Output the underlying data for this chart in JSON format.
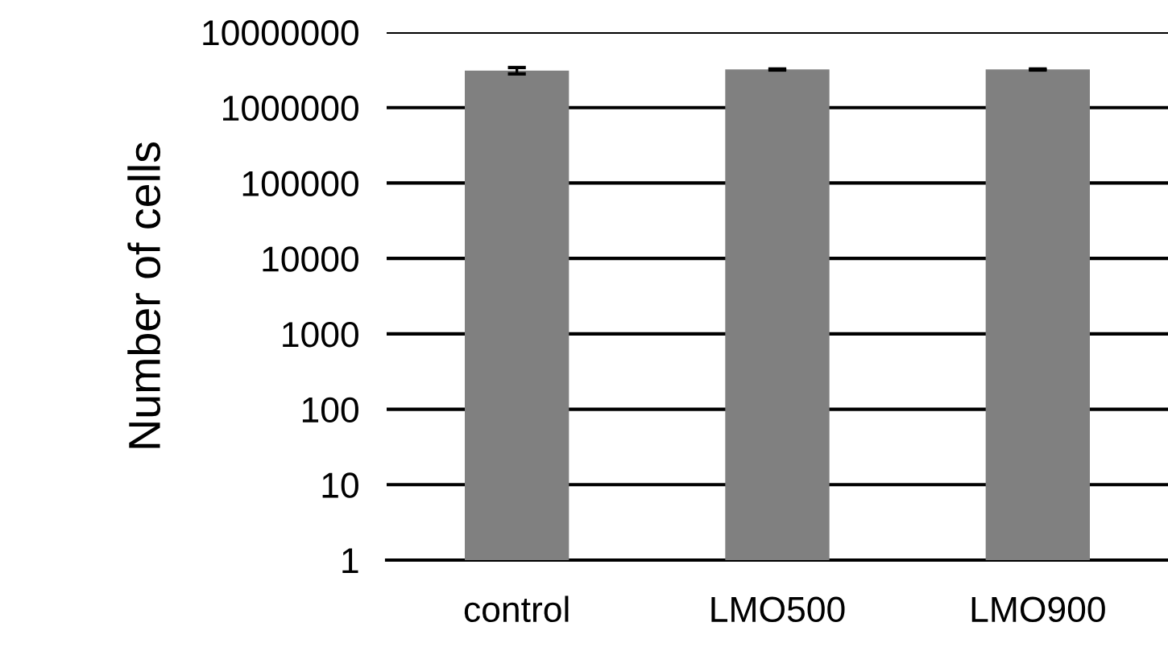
{
  "chart_data": {
    "type": "bar",
    "ylabel": "Number of cells",
    "categories": [
      "control",
      "LMO500",
      "LMO900"
    ],
    "values": [
      3100000,
      3200000,
      3200000
    ],
    "errors": [
      300000,
      50000,
      50000
    ],
    "color": "#808080",
    "log": true,
    "ylim": [
      1,
      10000000
    ],
    "yticks": [
      1,
      10,
      100,
      1000,
      10000,
      100000,
      1000000,
      10000000
    ],
    "grid": "y"
  }
}
